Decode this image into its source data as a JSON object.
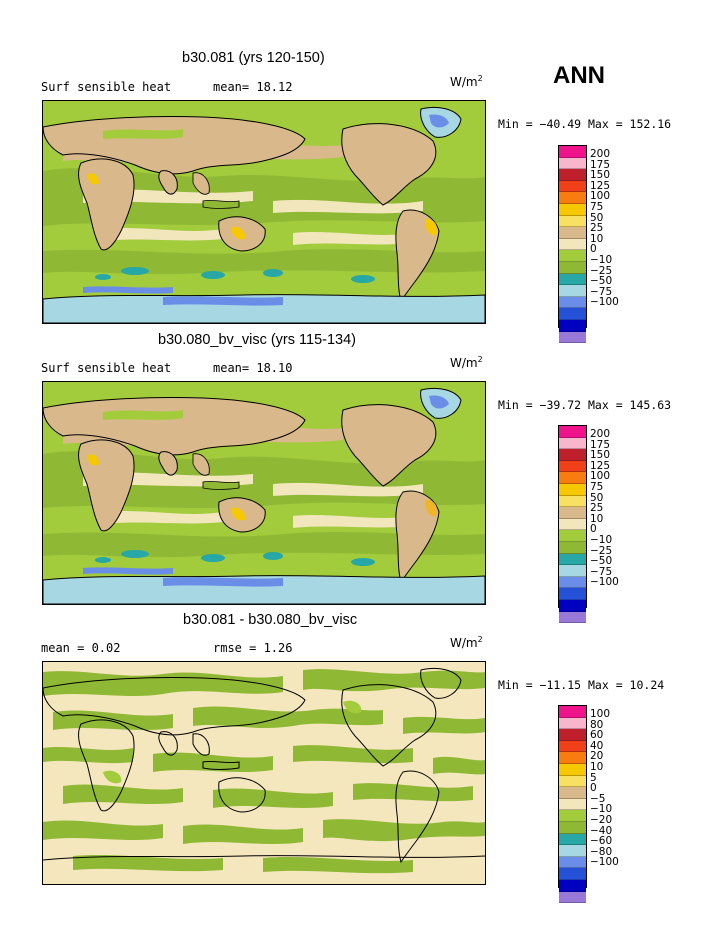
{
  "season": "ANN",
  "colors": {
    "ocean_dry": "#f4e6bd",
    "land_line": "#000000",
    "pos_small": "#a2cc3c",
    "pos_mid": "#8fb935",
    "tan": "#d6b98e",
    "teal": "#27a7a5",
    "lightblue": "#a6d7e3",
    "mediumblue": "#6a8ee8",
    "orange": "#f0b428",
    "yellow": "#f6d200"
  },
  "panels": [
    {
      "title": "b30.081 (yrs 120-150)",
      "left_label": "Surf sensible heat",
      "mid_label": "mean=  18.12",
      "units_base": "W/m",
      "units_exp": "2",
      "minmax": "Min = −40.49 Max = 152.16",
      "colorbar": {
        "colors": [
          "#f0148c",
          "#f8b6cc",
          "#c0202c",
          "#f04018",
          "#f87c10",
          "#f6c800",
          "#f8e060",
          "#d9b98c",
          "#f2e6bc",
          "#a2cc3c",
          "#8fb935",
          "#27a7a5",
          "#a6d7e3",
          "#6a8ee8",
          "#2550d8",
          "#0000c0",
          "#9a78d8"
        ],
        "ticks": [
          "200",
          "175",
          "150",
          "125",
          "100",
          "75",
          "50",
          "25",
          "10",
          "0",
          "−10",
          "−25",
          "−50",
          "−75",
          "−100"
        ]
      }
    },
    {
      "title": "b30.080_bv_visc (yrs 115-134)",
      "left_label": "Surf sensible heat",
      "mid_label": "mean=  18.10",
      "units_base": "W/m",
      "units_exp": "2",
      "minmax": "Min = −39.72 Max = 145.63",
      "colorbar": {
        "colors": [
          "#f0148c",
          "#f8b6cc",
          "#c0202c",
          "#f04018",
          "#f87c10",
          "#f6c800",
          "#f8e060",
          "#d9b98c",
          "#f2e6bc",
          "#a2cc3c",
          "#8fb935",
          "#27a7a5",
          "#a6d7e3",
          "#6a8ee8",
          "#2550d8",
          "#0000c0",
          "#9a78d8"
        ],
        "ticks": [
          "200",
          "175",
          "150",
          "125",
          "100",
          "75",
          "50",
          "25",
          "10",
          "0",
          "−10",
          "−25",
          "−50",
          "−75",
          "−100"
        ]
      }
    },
    {
      "title": "b30.081 - b30.080_bv_visc",
      "left_label": "mean =   0.02",
      "mid_label": "rmse =   1.26",
      "units_base": "W/m",
      "units_exp": "2",
      "minmax": "Min = −11.15 Max =  10.24",
      "colorbar": {
        "colors": [
          "#f0148c",
          "#f8b6cc",
          "#c0202c",
          "#f04018",
          "#f87c10",
          "#f6c800",
          "#f8e060",
          "#d9b98c",
          "#f2e6bc",
          "#a2cc3c",
          "#8fb935",
          "#27a7a5",
          "#a6d7e3",
          "#6a8ee8",
          "#2550d8",
          "#0000c0",
          "#9a78d8"
        ],
        "ticks": [
          "100",
          "80",
          "60",
          "40",
          "20",
          "10",
          "5",
          "0",
          "−5",
          "−10",
          "−20",
          "−40",
          "−60",
          "−80",
          "−100"
        ]
      }
    }
  ]
}
